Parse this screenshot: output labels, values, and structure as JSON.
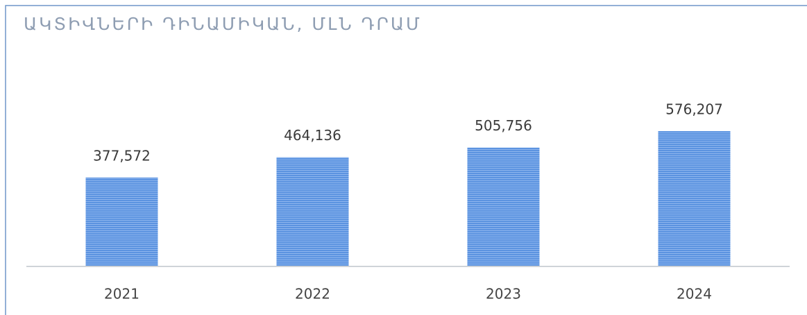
{
  "chart_data": {
    "type": "bar",
    "title": "ԱԿՏԻՎՆԵՐԻ ԴԻՆԱՄԻԿԱՆ, ՄԼՆ ԴՐԱՄ",
    "categories": [
      "2021",
      "2022",
      "2023",
      "2024"
    ],
    "values": [
      377572,
      464136,
      505756,
      576207
    ],
    "value_labels": [
      "377,572",
      "464,136",
      "505,756",
      "576,207"
    ],
    "color": "#5b93e0",
    "ylim": [
      0,
      900000
    ]
  }
}
